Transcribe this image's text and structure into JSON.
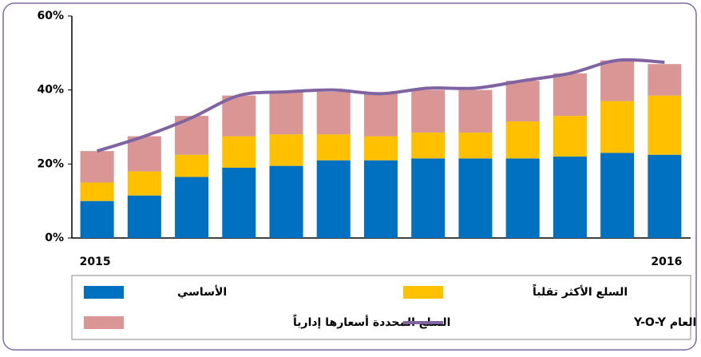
{
  "chart_data": {
    "type": "bar",
    "categories": [
      "2015",
      null,
      null,
      null,
      null,
      null,
      null,
      null,
      null,
      null,
      null,
      null,
      "2016"
    ],
    "series": [
      {
        "name": "الأساسي",
        "color": "#0070c0",
        "values": [
          10,
          11.5,
          16.5,
          19,
          19.5,
          21,
          21,
          21.5,
          21.5,
          21.5,
          22,
          23,
          22.5
        ]
      },
      {
        "name": "السلع الأكثر تقلباً",
        "color": "#ffc000",
        "values": [
          5,
          6.5,
          6,
          8.5,
          8.5,
          7,
          6.5,
          7,
          7,
          10,
          11,
          14,
          16
        ]
      },
      {
        "name": "السلع المحددة أسعارها إدارياً",
        "color": "#d99694",
        "values": [
          8.5,
          9.5,
          10.5,
          11,
          11.5,
          11.5,
          11.5,
          11.5,
          11.5,
          11,
          11.5,
          11,
          8.5
        ]
      },
      {
        "name": "معدل التضخم السنوي العام Y-O-Y",
        "color": "#8064a2",
        "type": "line",
        "values": [
          23.5,
          27.5,
          32.5,
          38.5,
          39.5,
          40,
          39,
          40.5,
          40.5,
          42.5,
          44.5,
          48,
          47.5
        ]
      }
    ],
    "stacked": true,
    "ylim": [
      0,
      60
    ],
    "yticks": [
      {
        "value": 0,
        "label": "0%"
      },
      {
        "value": 20,
        "label": "20%"
      },
      {
        "value": 40,
        "label": "40%"
      },
      {
        "value": 60,
        "label": "60%"
      }
    ],
    "grid": false
  }
}
